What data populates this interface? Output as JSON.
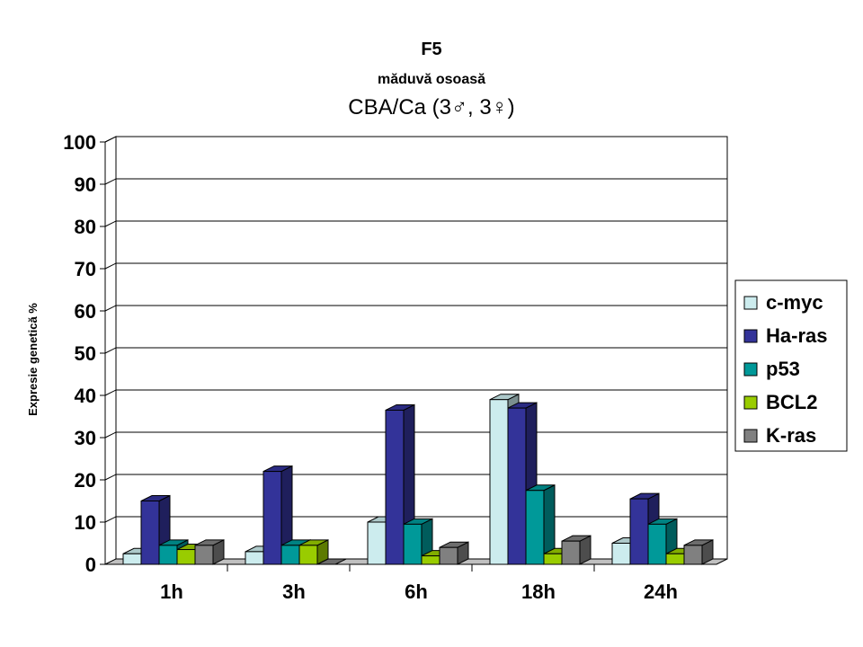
{
  "chart_data": {
    "type": "bar",
    "title": "F5",
    "subtitle": "măduvă osoasă",
    "subtitle2": "CBA/Ca (3♂, 3♀)",
    "xlabel": "",
    "ylabel": "Expresie genetică %",
    "ylim": [
      0,
      100
    ],
    "yticks": [
      0,
      10,
      20,
      30,
      40,
      50,
      60,
      70,
      80,
      90,
      100
    ],
    "grid": true,
    "legend_position": "right",
    "categories": [
      "1h",
      "3h",
      "6h",
      "18h",
      "24h"
    ],
    "series": [
      {
        "name": "c-myc",
        "color": "#CCECEE",
        "values": [
          2.5,
          3,
          10,
          39,
          5
        ]
      },
      {
        "name": "Ha-ras",
        "color": "#333399",
        "values": [
          15,
          22,
          36.5,
          37,
          15.5
        ]
      },
      {
        "name": "p53",
        "color": "#009999",
        "values": [
          4.5,
          4.5,
          9.5,
          17.5,
          9.5
        ]
      },
      {
        "name": "BCL2",
        "color": "#99CC00",
        "values": [
          3.5,
          4.5,
          2,
          2.5,
          2.5
        ]
      },
      {
        "name": "K-ras",
        "color": "#808080",
        "values": [
          4.5,
          0,
          4,
          5.5,
          4.5
        ]
      }
    ]
  }
}
